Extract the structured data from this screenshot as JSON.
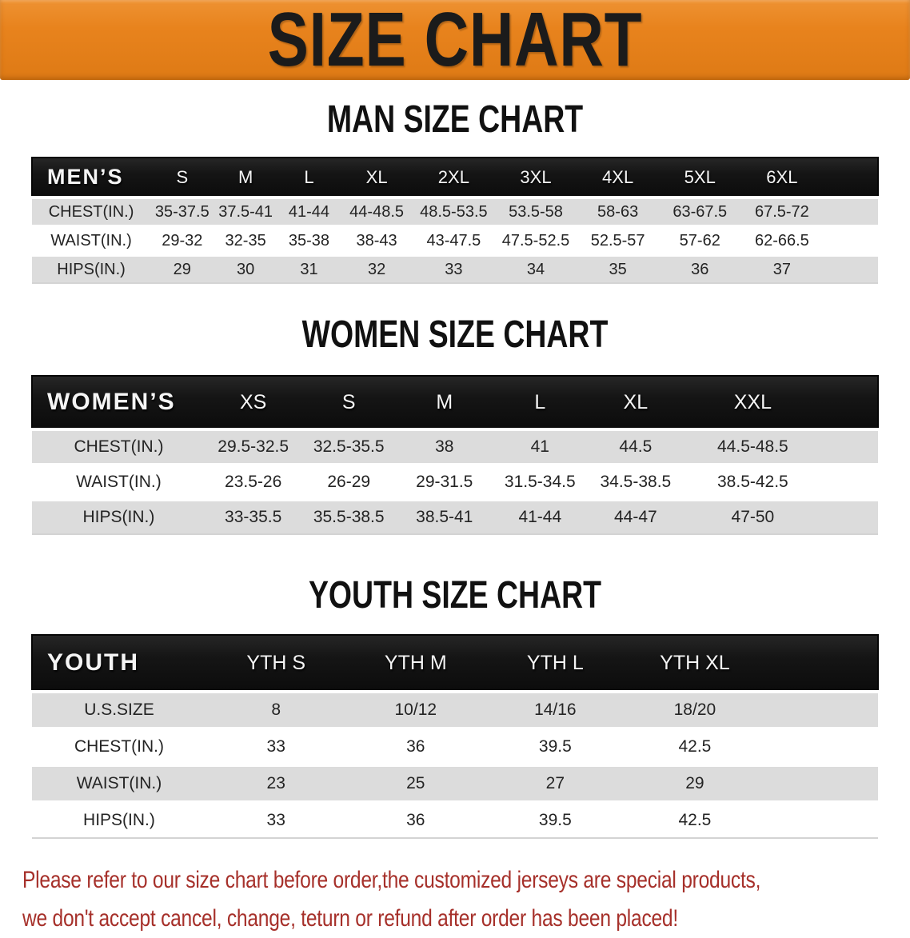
{
  "banner": {
    "title": "SIZE CHART"
  },
  "sections": [
    {
      "title": "MAN SIZE CHART",
      "table": {
        "corner_label": "MEN’S",
        "columns": [
          "S",
          "M",
          "L",
          "XL",
          "2XL",
          "3XL",
          "4XL",
          "5XL",
          "6XL"
        ],
        "rows": [
          {
            "label": "CHEST(IN.)",
            "values": [
              "35-37.5",
              "37.5-41",
              "41-44",
              "44-48.5",
              "48.5-53.5",
              "53.5-58",
              "58-63",
              "63-67.5",
              "67.5-72"
            ]
          },
          {
            "label": "WAIST(IN.)",
            "values": [
              "29-32",
              "32-35",
              "35-38",
              "38-43",
              "43-47.5",
              "47.5-52.5",
              "52.5-57",
              "57-62",
              "62-66.5"
            ]
          },
          {
            "label": "HIPS(IN.)",
            "values": [
              "29",
              "30",
              "31",
              "32",
              "33",
              "34",
              "35",
              "36",
              "37"
            ]
          }
        ]
      }
    },
    {
      "title": "WOMEN SIZE CHART",
      "table": {
        "corner_label": "WOMEN’S",
        "columns": [
          "XS",
          "S",
          "M",
          "L",
          "XL",
          "XXL"
        ],
        "rows": [
          {
            "label": "CHEST(IN.)",
            "values": [
              "29.5-32.5",
              "32.5-35.5",
              "38",
              "41",
              "44.5",
              "44.5-48.5"
            ]
          },
          {
            "label": "WAIST(IN.)",
            "values": [
              "23.5-26",
              "26-29",
              "29-31.5",
              "31.5-34.5",
              "34.5-38.5",
              "38.5-42.5"
            ]
          },
          {
            "label": "HIPS(IN.)",
            "values": [
              "33-35.5",
              "35.5-38.5",
              "38.5-41",
              "41-44",
              "44-47",
              "47-50"
            ]
          }
        ]
      }
    },
    {
      "title": "YOUTH SIZE CHART",
      "table": {
        "corner_label": "YOUTH",
        "columns": [
          "YTH S",
          "YTH M",
          "YTH L",
          "YTH XL"
        ],
        "rows": [
          {
            "label": "U.S.SIZE",
            "values": [
              "8",
              "10/12",
              "14/16",
              "18/20"
            ]
          },
          {
            "label": "CHEST(IN.)",
            "values": [
              "33",
              "36",
              "39.5",
              "42.5"
            ]
          },
          {
            "label": "WAIST(IN.)",
            "values": [
              "23",
              "25",
              "27",
              "29"
            ]
          },
          {
            "label": "HIPS(IN.)",
            "values": [
              "33",
              "36",
              "39.5",
              "42.5"
            ]
          }
        ]
      }
    }
  ],
  "footer": {
    "line1": "Please refer to our size chart before order,the customized jerseys are special products,",
    "line2": "we don't accept cancel, change, teturn or refund after order has been placed!"
  },
  "colors": {
    "banner_bg": "#E8831D",
    "banner_text": "#1B1B1B",
    "header_bar_bg": "#151515",
    "header_bar_text": "#F5F5F5",
    "row_stripe": "#DCDCDC",
    "table_text": "#242424",
    "note_red": "#A6302A",
    "page_bg": "#FFFFFF"
  }
}
